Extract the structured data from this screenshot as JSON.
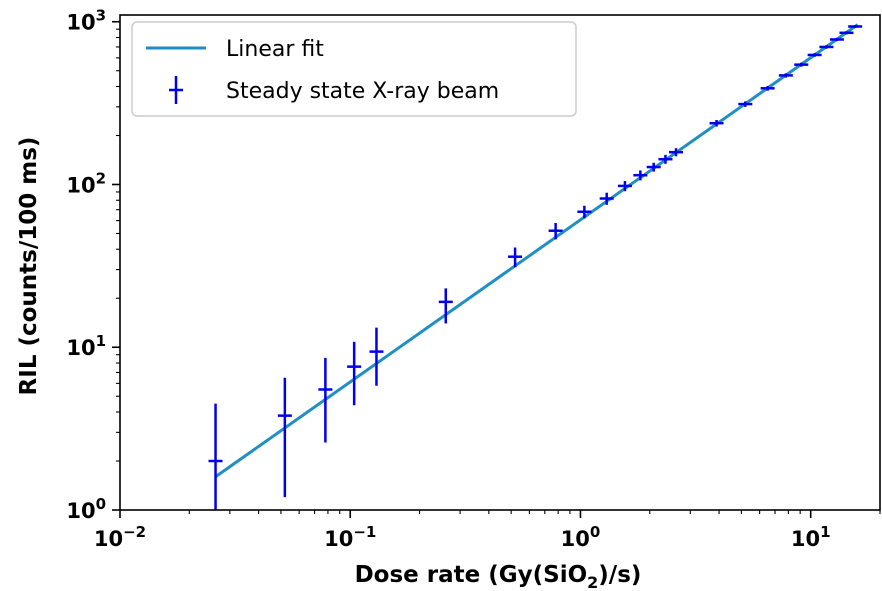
{
  "chart_data": {
    "type": "scatter",
    "scale": {
      "x": "log",
      "y": "log"
    },
    "xlim": [
      0.01,
      20
    ],
    "ylim": [
      1,
      1100
    ],
    "x_ticks": [
      {
        "value": 0.01,
        "base": "10",
        "exp": "−2"
      },
      {
        "value": 0.1,
        "base": "10",
        "exp": "−1"
      },
      {
        "value": 1,
        "base": "10",
        "exp": "0"
      },
      {
        "value": 10,
        "base": "10",
        "exp": "1"
      }
    ],
    "y_ticks": [
      {
        "value": 1,
        "base": "10",
        "exp": "0"
      },
      {
        "value": 10,
        "base": "10",
        "exp": "1"
      },
      {
        "value": 100,
        "base": "10",
        "exp": "2"
      },
      {
        "value": 1000,
        "base": "10",
        "exp": "3"
      }
    ],
    "xlabel": {
      "prefix": "Dose rate (Gy(SiO",
      "sub": "2",
      "suffix": ")/s)"
    },
    "ylabel": "RIL (counts/100 ms)",
    "legend": {
      "position": "top-left"
    },
    "series": [
      {
        "name": "Linear fit",
        "kind": "line",
        "color": "#1f8fc4",
        "x": [
          0.026,
          16
        ],
        "y": [
          1.6,
          960
        ]
      },
      {
        "name": "Steady state X-ray beam",
        "kind": "errorbar",
        "color": "#0000ee",
        "points": [
          {
            "x": 0.026,
            "y": 2.0,
            "ylo": 1.0,
            "yhi": 4.5
          },
          {
            "x": 0.052,
            "y": 3.8,
            "ylo": 1.2,
            "yhi": 6.5
          },
          {
            "x": 0.078,
            "y": 5.5,
            "ylo": 2.6,
            "yhi": 8.6
          },
          {
            "x": 0.104,
            "y": 7.6,
            "ylo": 4.4,
            "yhi": 10.8
          },
          {
            "x": 0.13,
            "y": 9.4,
            "ylo": 5.8,
            "yhi": 13.2
          },
          {
            "x": 0.26,
            "y": 19,
            "ylo": 14,
            "yhi": 23
          },
          {
            "x": 0.52,
            "y": 36,
            "ylo": 31,
            "yhi": 41
          },
          {
            "x": 0.78,
            "y": 52,
            "ylo": 46,
            "yhi": 58
          },
          {
            "x": 1.04,
            "y": 68,
            "ylo": 62,
            "yhi": 74
          },
          {
            "x": 1.3,
            "y": 82,
            "ylo": 75,
            "yhi": 89
          },
          {
            "x": 1.56,
            "y": 98,
            "ylo": 91,
            "yhi": 105
          },
          {
            "x": 1.82,
            "y": 114,
            "ylo": 106,
            "yhi": 122
          },
          {
            "x": 2.08,
            "y": 128,
            "ylo": 120,
            "yhi": 136
          },
          {
            "x": 2.34,
            "y": 143,
            "ylo": 134,
            "yhi": 152
          },
          {
            "x": 2.6,
            "y": 158,
            "ylo": 149,
            "yhi": 167
          },
          {
            "x": 3.9,
            "y": 238,
            "ylo": 227,
            "yhi": 249
          },
          {
            "x": 5.2,
            "y": 312,
            "ylo": 300,
            "yhi": 324
          },
          {
            "x": 6.5,
            "y": 390,
            "ylo": 377,
            "yhi": 403
          },
          {
            "x": 7.8,
            "y": 468,
            "ylo": 454,
            "yhi": 482
          },
          {
            "x": 9.1,
            "y": 545,
            "ylo": 530,
            "yhi": 560
          },
          {
            "x": 10.4,
            "y": 625,
            "ylo": 609,
            "yhi": 641
          },
          {
            "x": 11.7,
            "y": 700,
            "ylo": 683,
            "yhi": 717
          },
          {
            "x": 13.0,
            "y": 778,
            "ylo": 760,
            "yhi": 796
          },
          {
            "x": 14.3,
            "y": 855,
            "ylo": 836,
            "yhi": 874
          },
          {
            "x": 15.6,
            "y": 935,
            "ylo": 915,
            "yhi": 955
          }
        ]
      }
    ]
  }
}
